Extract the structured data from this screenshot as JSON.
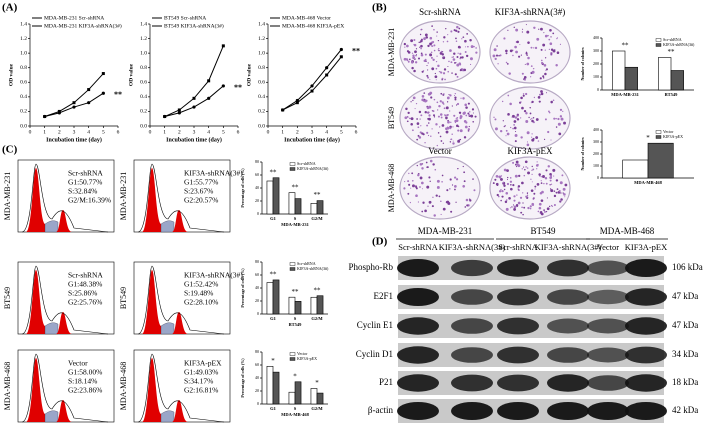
{
  "panel_labels": [
    "(A)",
    "(B)",
    "(C)",
    "(D)"
  ],
  "panel_a": [
    {
      "type": "line",
      "xlabel": "Incubation time (day)",
      "ylabel": "OD value",
      "x": [
        1,
        2,
        3,
        4,
        5
      ],
      "xlim": [
        0,
        6
      ],
      "xticks": [
        0,
        1,
        2,
        3,
        4,
        5,
        6
      ],
      "ylim": [
        0,
        1.4
      ],
      "yticks": [
        {
          "value": 0,
          "label": "0.0"
        },
        {
          "value": 0.2,
          "label": "0.2"
        },
        {
          "value": 0.4,
          "label": "0.4"
        },
        {
          "value": 0.6,
          "label": "0.6"
        },
        {
          "value": 0.8,
          "label": "0.8"
        },
        {
          "value": 1,
          "label": "1.0"
        },
        {
          "value": 1.2,
          "label": "1.2"
        },
        {
          "value": 1.4,
          "label": "1.4"
        }
      ],
      "series": [
        {
          "name": "MDA-MB-231 Scr-shRNA",
          "color": "#000000",
          "values": [
            0.13,
            0.2,
            0.32,
            0.5,
            0.72
          ]
        },
        {
          "name": "MDA-MB-231 KIF3A-shRNA(3#)",
          "color": "#000000",
          "values": [
            0.13,
            0.18,
            0.26,
            0.32,
            0.45
          ]
        }
      ],
      "annotation": "**"
    },
    {
      "type": "line",
      "xlabel": "Incubation time (day)",
      "ylabel": "OD value",
      "x": [
        1,
        2,
        3,
        4,
        5
      ],
      "xlim": [
        0,
        6
      ],
      "xticks": [
        0,
        1,
        2,
        3,
        4,
        5,
        6
      ],
      "ylim": [
        0,
        1.4
      ],
      "yticks": [
        {
          "value": 0,
          "label": "0.0"
        },
        {
          "value": 0.2,
          "label": "0.2"
        },
        {
          "value": 0.4,
          "label": "0.4"
        },
        {
          "value": 0.6,
          "label": "0.6"
        },
        {
          "value": 0.8,
          "label": "0.8"
        },
        {
          "value": 1,
          "label": "1.0"
        },
        {
          "value": 1.2,
          "label": "1.2"
        },
        {
          "value": 1.4,
          "label": "1.4"
        }
      ],
      "series": [
        {
          "name": "BT549 Scr-shRNA",
          "color": "#000000",
          "values": [
            0.13,
            0.22,
            0.38,
            0.62,
            1.1
          ]
        },
        {
          "name": "BT549 KIF3A-shRNA(3#)",
          "color": "#000000",
          "values": [
            0.13,
            0.18,
            0.26,
            0.38,
            0.55
          ]
        }
      ],
      "annotation": "**"
    },
    {
      "type": "line",
      "xlabel": "Incubation time (day)",
      "ylabel": "OD value",
      "x": [
        1,
        2,
        3,
        4,
        5
      ],
      "xlim": [
        0,
        6
      ],
      "xticks": [
        0,
        1,
        2,
        3,
        4,
        5,
        6
      ],
      "ylim": [
        0,
        1.4
      ],
      "yticks": [
        {
          "value": 0,
          "label": "0.0"
        },
        {
          "value": 0.2,
          "label": "0.2"
        },
        {
          "value": 0.4,
          "label": "0.4"
        },
        {
          "value": 0.6,
          "label": "0.6"
        },
        {
          "value": 0.8,
          "label": "0.8"
        },
        {
          "value": 1,
          "label": "1.0"
        },
        {
          "value": 1.2,
          "label": "1.2"
        },
        {
          "value": 1.4,
          "label": "1.4"
        }
      ],
      "series": [
        {
          "name": "MDA-MB-468 Vector",
          "color": "#000000",
          "values": [
            0.22,
            0.32,
            0.48,
            0.7,
            0.95
          ]
        },
        {
          "name": "MDA-MB-468 KIF3A-pEX",
          "color": "#000000",
          "values": [
            0.22,
            0.35,
            0.55,
            0.8,
            1.05
          ]
        }
      ],
      "annotation": "**"
    }
  ],
  "panel_b": {
    "columns": [
      "Scr-shRNA",
      "KIF3A-shRNA(3#)"
    ],
    "columns_468": [
      "Vector",
      "KIF3A-pEX"
    ],
    "rows": [
      "MDA-MB-231",
      "BT549",
      "MDA-MB-468"
    ],
    "charts": [
      {
        "type": "bar",
        "ylabel": "Number of colonies",
        "categories": [
          "MDA-MB-231",
          "BT549"
        ],
        "ylim": [
          0,
          400
        ],
        "yticks": [
          0,
          100,
          200,
          300,
          400
        ],
        "series": [
          {
            "name": "Scr-shRNA",
            "color": "#ffffff",
            "values": [
              300,
              250
            ]
          },
          {
            "name": "KIF3A-shRNA(3#)",
            "color": "#555555",
            "values": [
              175,
              150
            ]
          }
        ],
        "annotation": "**"
      },
      {
        "type": "bar",
        "ylabel": "Number of colonies",
        "categories": [
          "MDA-MB-468"
        ],
        "ylim": [
          0,
          400
        ],
        "yticks": [
          0,
          100,
          200,
          300,
          400
        ],
        "series": [
          {
            "name": "Vector",
            "color": "#ffffff",
            "values": [
              150
            ]
          },
          {
            "name": "KIF3A-pEX",
            "color": "#555555",
            "values": [
              290
            ]
          }
        ],
        "annotation": "*"
      }
    ]
  },
  "panel_c": {
    "rows": [
      "MDA-MB-231",
      "BT549",
      "MDA-MB-468"
    ],
    "histograms": [
      [
        {
          "name": "Scr-shRNA",
          "lines": [
            "G1:50.77%",
            "S:32.84%",
            "G2/M:16.39%"
          ]
        },
        {
          "name": "KIF3A-shRNA(3#)",
          "lines": [
            "G1:55.77%",
            "S:23.67%",
            "G2:20.57%"
          ]
        }
      ],
      [
        {
          "name": "Scr-shRNA",
          "lines": [
            "G1:48.38%",
            "S:25.86%",
            "G2:25.76%"
          ]
        },
        {
          "name": "KIF3A-shRNA(3#)",
          "lines": [
            "G1:52.42%",
            "S:19.48%",
            "G2:28.10%"
          ]
        }
      ],
      [
        {
          "name": "Vector",
          "lines": [
            "G1:58.00%",
            "S:18.14%",
            "G2:23.86%"
          ]
        },
        {
          "name": "KIF3A-pEX",
          "lines": [
            "G1:49.03%",
            "S:34.17%",
            "G2:16.81%"
          ]
        }
      ]
    ],
    "charts": [
      {
        "type": "bar",
        "ylabel": "Percentage of cells (%)",
        "xlabel": "MDA-MB-231",
        "categories": [
          "G1",
          "S",
          "G2/M"
        ],
        "ylim": [
          0,
          80
        ],
        "yticks": [
          0,
          20,
          40,
          60,
          80
        ],
        "series": [
          {
            "name": "Scr-shRNA",
            "color": "#ffffff",
            "values": [
              50.77,
              32.84,
              16.39
            ]
          },
          {
            "name": "KIF3A-shRNA(3#)",
            "color": "#555555",
            "values": [
              55.77,
              23.67,
              20.57
            ]
          }
        ],
        "annotation": "**"
      },
      {
        "type": "bar",
        "ylabel": "Percentage of cells (%)",
        "xlabel": "BT549",
        "categories": [
          "G1",
          "S",
          "G2/M"
        ],
        "ylim": [
          0,
          80
        ],
        "yticks": [
          0,
          20,
          40,
          60,
          80
        ],
        "series": [
          {
            "name": "Scr-shRNA",
            "color": "#ffffff",
            "values": [
              48.38,
              25.86,
              25.76
            ]
          },
          {
            "name": "KIF3A-shRNA(3#)",
            "color": "#555555",
            "values": [
              52.42,
              19.48,
              28.1
            ]
          }
        ],
        "annotation": "**"
      },
      {
        "type": "bar",
        "ylabel": "Percentage of cells (%)",
        "xlabel": "MDA-MB-468",
        "categories": [
          "G1",
          "S",
          "G2/M"
        ],
        "ylim": [
          0,
          80
        ],
        "yticks": [
          0,
          20,
          40,
          60,
          80
        ],
        "series": [
          {
            "name": "Vector",
            "color": "#ffffff",
            "values": [
              58,
              18.14,
              23.86
            ]
          },
          {
            "name": "KIF3A-pEX",
            "color": "#555555",
            "values": [
              49.03,
              34.17,
              16.81
            ]
          }
        ],
        "annotation": "*"
      }
    ]
  },
  "panel_d": {
    "cell_lines": [
      "MDA-MB-231",
      "BT549",
      "MDA-MB-468"
    ],
    "lanes": [
      "Scr-shRNA",
      "KIF3A-shRNA(3#)",
      "Scr-shRNA",
      "KIF3A-shRNA(3#)",
      "Vector",
      "KIF3A-pEX"
    ],
    "proteins": [
      "Phospho-Rb",
      "E2F1",
      "Cyclin E1",
      "Cyclin D1",
      "P21",
      "β-actin"
    ],
    "sizes": [
      "106 kDa",
      "47 kDa",
      "47 kDa",
      "34 kDa",
      "18 kDa",
      "42 kDa"
    ]
  }
}
